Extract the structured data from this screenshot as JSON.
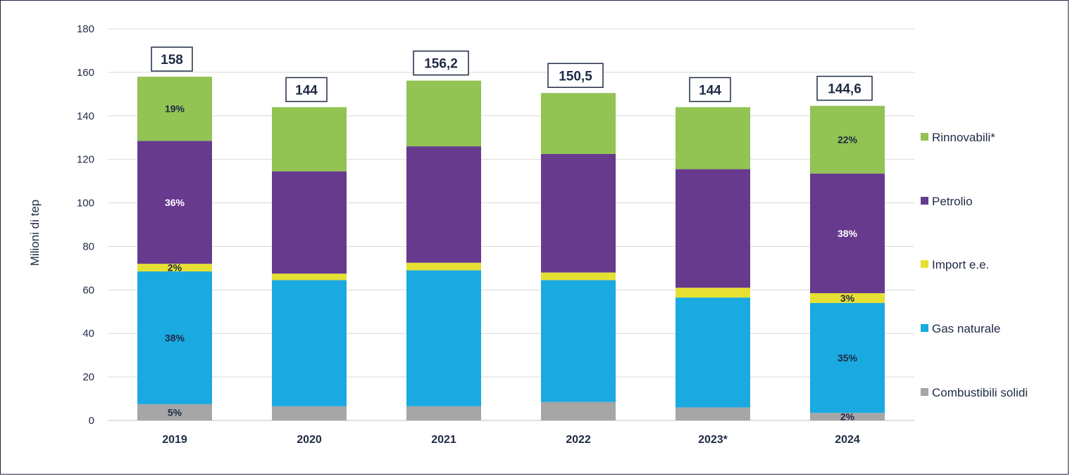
{
  "chart_data": {
    "type": "bar",
    "stacked": true,
    "title": "",
    "xlabel": "",
    "ylabel": "Milioni di tep",
    "ylim": [
      0,
      180
    ],
    "yticks": [
      0,
      20,
      40,
      60,
      80,
      100,
      120,
      140,
      160,
      180
    ],
    "grid": true,
    "legend_position": "right",
    "categories": [
      "2019",
      "2020",
      "2021",
      "2022",
      "2023*",
      "2024"
    ],
    "totals": [
      "158",
      "144",
      "156,2",
      "150,5",
      "144",
      "144,6"
    ],
    "series": [
      {
        "name": "Combustibili solidi",
        "color": "#a6a6a6",
        "values": [
          7.5,
          6.5,
          6.5,
          8.5,
          6.0,
          3.5
        ],
        "labels": [
          "5%",
          "",
          "",
          "",
          "",
          "2%"
        ],
        "label_color": "#1f2a44"
      },
      {
        "name": "Gas naturale",
        "color": "#1aa9e1",
        "values": [
          61.0,
          58.0,
          62.5,
          56.0,
          50.5,
          50.5
        ],
        "labels": [
          "38%",
          "",
          "",
          "",
          "",
          "35%"
        ],
        "label_color": "#1f2a44"
      },
      {
        "name": "Import e.e.",
        "color": "#e6e033",
        "values": [
          3.5,
          3.0,
          3.5,
          3.5,
          4.5,
          4.5
        ],
        "labels": [
          "2%",
          "",
          "",
          "",
          "",
          "3%"
        ],
        "label_color": "#1f2a44"
      },
      {
        "name": "Petrolio",
        "color": "#673a8e",
        "values": [
          56.5,
          47.0,
          53.5,
          54.5,
          54.5,
          55.0
        ],
        "labels": [
          "36%",
          "",
          "",
          "",
          "",
          "38%"
        ],
        "label_color": "#ffffff"
      },
      {
        "name": "Rinnovabili*",
        "color": "#92c353",
        "values": [
          29.5,
          29.5,
          30.2,
          28.0,
          28.5,
          31.1
        ],
        "labels": [
          "19%",
          "",
          "",
          "",
          "",
          "22%"
        ],
        "label_color": "#1f2a44"
      }
    ]
  }
}
